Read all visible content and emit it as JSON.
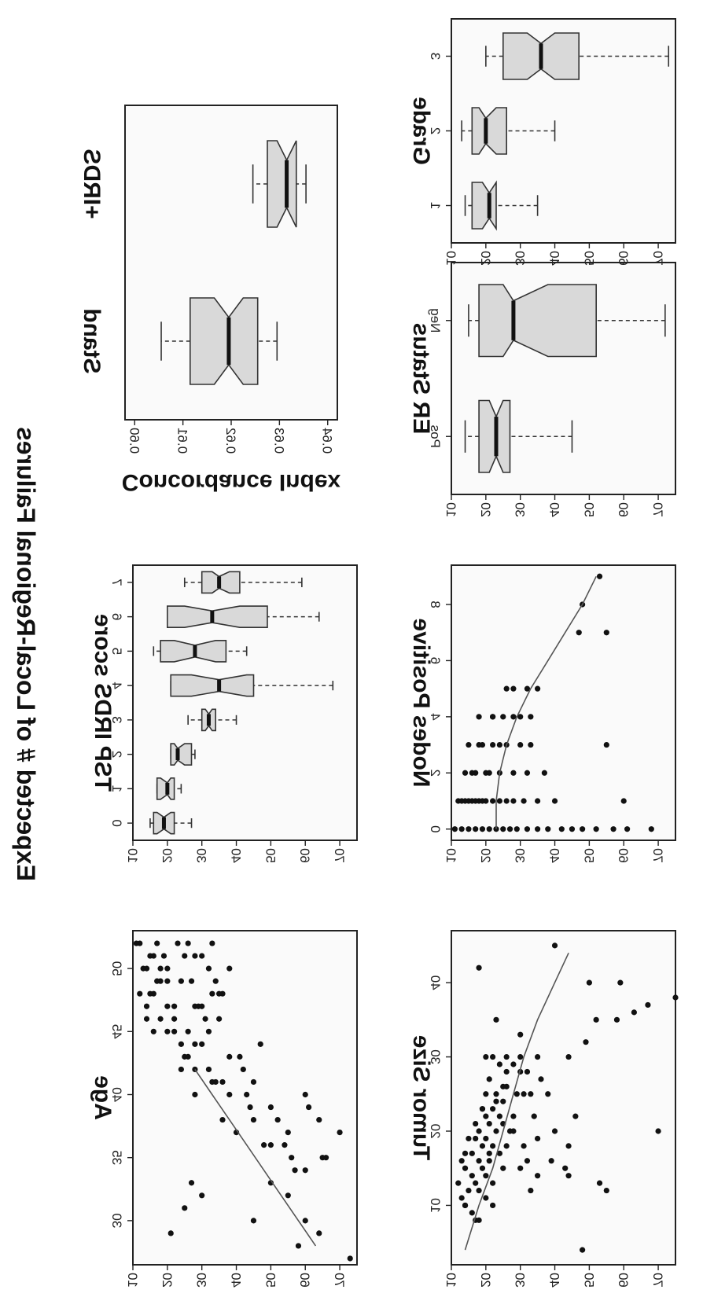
{
  "figure": {
    "ylabel": "Expected # of Local-Regional Failures"
  },
  "chart_data": [
    {
      "id": "tumor_size",
      "type": "scatter",
      "title": "Tumor Size",
      "xlabel": "Tumor Size",
      "ylabel": "Expected # of Local-Regional Failures",
      "xlim": [
        2,
        47
      ],
      "ylim": [
        10,
        75
      ],
      "xticks": [
        10,
        20,
        30,
        40
      ],
      "yticks": [
        10,
        20,
        30,
        40,
        50,
        60,
        70
      ],
      "x": [
        4,
        8,
        9,
        10,
        10,
        11,
        12,
        12,
        13,
        13,
        14,
        14,
        15,
        15,
        15,
        16,
        16,
        16,
        17,
        17,
        17,
        18,
        18,
        18,
        19,
        19,
        20,
        20,
        20,
        21,
        21,
        22,
        22,
        22,
        23,
        23,
        24,
        25,
        25,
        25,
        26,
        27,
        28,
        28,
        29,
        30,
        30,
        30,
        30,
        12,
        13,
        14,
        15,
        16,
        18,
        19,
        20,
        22,
        25,
        25,
        27,
        30,
        32,
        35,
        35,
        36,
        37,
        38,
        40,
        40,
        42,
        12,
        14,
        20,
        15,
        16,
        18,
        22,
        25,
        10,
        8,
        11,
        13,
        17,
        19,
        21,
        23,
        24,
        26,
        28,
        29,
        30,
        33,
        35,
        45,
        20
      ],
      "y": [
        48,
        17,
        16,
        14,
        22,
        13,
        15,
        18,
        17,
        12,
        16,
        20,
        14,
        19,
        25,
        13,
        21,
        18,
        16,
        24,
        14,
        22,
        19,
        26,
        20,
        15,
        23,
        18,
        27,
        21,
        17,
        24,
        20,
        28,
        22,
        19,
        25,
        23,
        29,
        20,
        25,
        21,
        30,
        26,
        24,
        30,
        26,
        22,
        20,
        55,
        53,
        44,
        43,
        39,
        44,
        35,
        40,
        46,
        33,
        31,
        36,
        44,
        49,
        52,
        58,
        63,
        67,
        75,
        59,
        50,
        18,
        33,
        35,
        28,
        30,
        32,
        31,
        34,
        38,
        14,
        18,
        20,
        22,
        21,
        17,
        25,
        19,
        23,
        26,
        32,
        28,
        35,
        30,
        23,
        40,
        70
      ],
      "fit_x": [
        4,
        10,
        15,
        20,
        25,
        30,
        35,
        40,
        44
      ],
      "fit_y": [
        14,
        18,
        22,
        25,
        28,
        31,
        35,
        40,
        44
      ]
    },
    {
      "id": "nodes_positive",
      "type": "scatter",
      "title": "Nodes Positive",
      "xlabel": "Nodes Positive",
      "ylabel": "Expected # of Local-Regional Failures",
      "xlim": [
        -0.4,
        9.4
      ],
      "ylim": [
        10,
        75
      ],
      "xticks": [
        0,
        2,
        4,
        6,
        8
      ],
      "yticks": [
        10,
        20,
        30,
        40,
        50,
        60,
        70
      ],
      "x": [
        0,
        0,
        0,
        0,
        0,
        0,
        0,
        0,
        0,
        0,
        0,
        0,
        0,
        0,
        0,
        0,
        0,
        0,
        0,
        0,
        1,
        1,
        1,
        1,
        1,
        1,
        1,
        1,
        1,
        1,
        1,
        1,
        1,
        2,
        2,
        2,
        2,
        2,
        2,
        2,
        3,
        3,
        3,
        3,
        3,
        3,
        4,
        4,
        4,
        4,
        5,
        5,
        5,
        7,
        7,
        8,
        9,
        1,
        1,
        3,
        4,
        5,
        1,
        2,
        3,
        4,
        1,
        2,
        3,
        4
      ],
      "y": [
        11,
        13,
        15,
        17,
        19,
        21,
        23,
        25,
        27,
        29,
        32,
        35,
        38,
        42,
        45,
        48,
        52,
        57,
        61,
        68,
        12,
        14,
        16,
        18,
        20,
        22,
        24,
        26,
        28,
        31,
        35,
        40,
        60,
        14,
        17,
        20,
        24,
        28,
        32,
        37,
        15,
        18,
        22,
        26,
        30,
        33,
        18,
        22,
        25,
        28,
        28,
        32,
        35,
        47,
        55,
        48,
        53,
        15,
        17,
        55,
        33,
        26,
        19,
        21,
        24,
        30,
        13,
        16,
        19,
        22
      ],
      "fit_x": [
        0,
        1,
        2,
        3,
        4,
        5,
        6,
        7,
        8,
        9
      ],
      "fit_y": [
        23,
        23,
        24,
        26,
        29,
        33,
        38,
        43,
        48,
        52
      ]
    },
    {
      "id": "er_status",
      "type": "box",
      "title": "ER Status",
      "xlabel": "ER Status",
      "ylim": [
        10,
        75
      ],
      "yticks": [
        10,
        20,
        30,
        40,
        50,
        60,
        70
      ],
      "categories": [
        "Pos",
        "Neg"
      ],
      "boxes": [
        {
          "category": "Pos",
          "min": 14,
          "q1": 18,
          "median": 23,
          "q3": 27,
          "max": 45,
          "notch": [
            21,
            25
          ]
        },
        {
          "category": "Neg",
          "min": 15,
          "q1": 18,
          "median": 28,
          "q3": 52,
          "max": 72,
          "notch": [
            25,
            38
          ]
        }
      ]
    },
    {
      "id": "grade",
      "type": "box",
      "title": "Grade",
      "xlabel": "Grade",
      "ylim": [
        10,
        75
      ],
      "yticks": [
        10,
        20,
        30,
        40,
        50,
        60,
        70
      ],
      "categories": [
        "1",
        "2",
        "3"
      ],
      "boxes": [
        {
          "category": "1",
          "min": 14,
          "q1": 16,
          "median": 21,
          "q3": 23,
          "max": 35,
          "notch": [
            19,
            23
          ]
        },
        {
          "category": "2",
          "min": 13,
          "q1": 16,
          "median": 20,
          "q3": 26,
          "max": 40,
          "notch": [
            18,
            23
          ]
        },
        {
          "category": "3",
          "min": 20,
          "q1": 25,
          "median": 36,
          "q3": 47,
          "max": 73,
          "notch": [
            32,
            40
          ]
        }
      ]
    },
    {
      "id": "age",
      "type": "scatter",
      "title": "Age",
      "xlabel": "Age",
      "ylabel": "Expected # of Local-Regional Failures",
      "xlim": [
        26.5,
        53
      ],
      "ylim": [
        10,
        75
      ],
      "xticks": [
        30,
        35,
        40,
        45,
        50
      ],
      "yticks": [
        10,
        20,
        30,
        40,
        50,
        60,
        70
      ],
      "x": [
        27,
        28,
        29,
        30,
        31,
        32,
        33,
        34,
        35,
        35,
        36,
        36,
        37,
        37,
        38,
        38,
        38,
        39,
        39,
        40,
        40,
        41,
        41,
        42,
        42,
        43,
        43,
        44,
        44,
        45,
        45,
        46,
        46,
        47,
        47,
        48,
        48,
        49,
        49,
        50,
        50,
        51,
        51,
        52,
        52,
        36,
        37,
        38,
        39,
        40,
        41,
        42,
        43,
        44,
        45,
        46,
        47,
        48,
        49,
        50,
        51,
        52,
        29,
        30,
        32,
        33,
        34,
        35,
        40,
        41,
        42,
        43,
        44,
        45,
        46,
        47,
        48,
        49,
        50,
        51,
        52,
        45,
        46,
        47,
        48,
        49,
        50,
        51,
        52,
        47,
        48,
        49,
        50,
        51,
        52
      ],
      "y": [
        73,
        58,
        21,
        45,
        25,
        30,
        27,
        60,
        56,
        66,
        50,
        54,
        70,
        40,
        64,
        52,
        36,
        44,
        61,
        60,
        28,
        45,
        34,
        42,
        24,
        38,
        25,
        30,
        47,
        32,
        22,
        35,
        22,
        30,
        28,
        36,
        33,
        27,
        34,
        20,
        38,
        30,
        25,
        33,
        23,
        48,
        55,
        45,
        50,
        43,
        36,
        32,
        41,
        28,
        26,
        31,
        29,
        35,
        24,
        32,
        28,
        26,
        64,
        60,
        55,
        50,
        57,
        65,
        38,
        33,
        28,
        26,
        24,
        20,
        18,
        22,
        16,
        20,
        18,
        15,
        17,
        16,
        14,
        20,
        12,
        18,
        14,
        16,
        12,
        14,
        15,
        17,
        13,
        19,
        11
      ],
      "fit_x": [
        28,
        30,
        32,
        34,
        36,
        38,
        40,
        42
      ],
      "fit_y": [
        63,
        58,
        53,
        48,
        43,
        38,
        33,
        28
      ]
    },
    {
      "id": "tsp_irds",
      "type": "box",
      "title": "TSP IRDS score",
      "xlabel": "TSP IRDS score",
      "ylim": [
        10,
        75
      ],
      "yticks": [
        10,
        20,
        30,
        40,
        50,
        60,
        70
      ],
      "categories": [
        "0",
        "1",
        "2",
        "3",
        "4",
        "5",
        "6",
        "7"
      ],
      "boxes": [
        {
          "category": "0",
          "min": 15,
          "q1": 16,
          "median": 19,
          "q3": 22,
          "max": 27,
          "notch": [
            17,
            21
          ]
        },
        {
          "category": "1",
          "min": 17,
          "q1": 17,
          "median": 20,
          "q3": 22,
          "max": 24,
          "notch": [
            18,
            21
          ]
        },
        {
          "category": "2",
          "min": 21,
          "q1": 21,
          "median": 23,
          "q3": 27,
          "max": 28,
          "notch": [
            22,
            25
          ]
        },
        {
          "category": "3",
          "min": 26,
          "q1": 30,
          "median": 32,
          "q3": 34,
          "max": 40,
          "notch": [
            31,
            33
          ]
        },
        {
          "category": "4",
          "min": 21,
          "q1": 21,
          "median": 35,
          "q3": 45,
          "max": 68,
          "notch": [
            27,
            43
          ]
        },
        {
          "category": "5",
          "min": 16,
          "q1": 18,
          "median": 28,
          "q3": 37,
          "max": 43,
          "notch": [
            22,
            34
          ]
        },
        {
          "category": "6",
          "min": 20,
          "q1": 20,
          "median": 33,
          "q3": 49,
          "max": 64,
          "notch": [
            25,
            41
          ]
        },
        {
          "category": "7",
          "min": 25,
          "q1": 30,
          "median": 35,
          "q3": 41,
          "max": 59,
          "notch": [
            33,
            38
          ]
        }
      ]
    },
    {
      "id": "concordance",
      "type": "box",
      "title": "",
      "xlabel": "",
      "ylabel": "Concordance Index",
      "ylim": [
        0.598,
        0.642
      ],
      "yticks": [
        0.6,
        0.61,
        0.62,
        0.63,
        0.64
      ],
      "categories": [
        "Stand",
        "+IRDS"
      ],
      "boxes": [
        {
          "category": "Stand",
          "min": 0.6055,
          "q1": 0.6115,
          "median": 0.6195,
          "q3": 0.6255,
          "max": 0.6295,
          "notch": [
            0.6165,
            0.6225
          ]
        },
        {
          "category": "+IRDS",
          "min": 0.6245,
          "q1": 0.6275,
          "median": 0.6315,
          "q3": 0.6335,
          "max": 0.6355,
          "notch": [
            0.6295,
            0.6335
          ]
        }
      ]
    }
  ]
}
